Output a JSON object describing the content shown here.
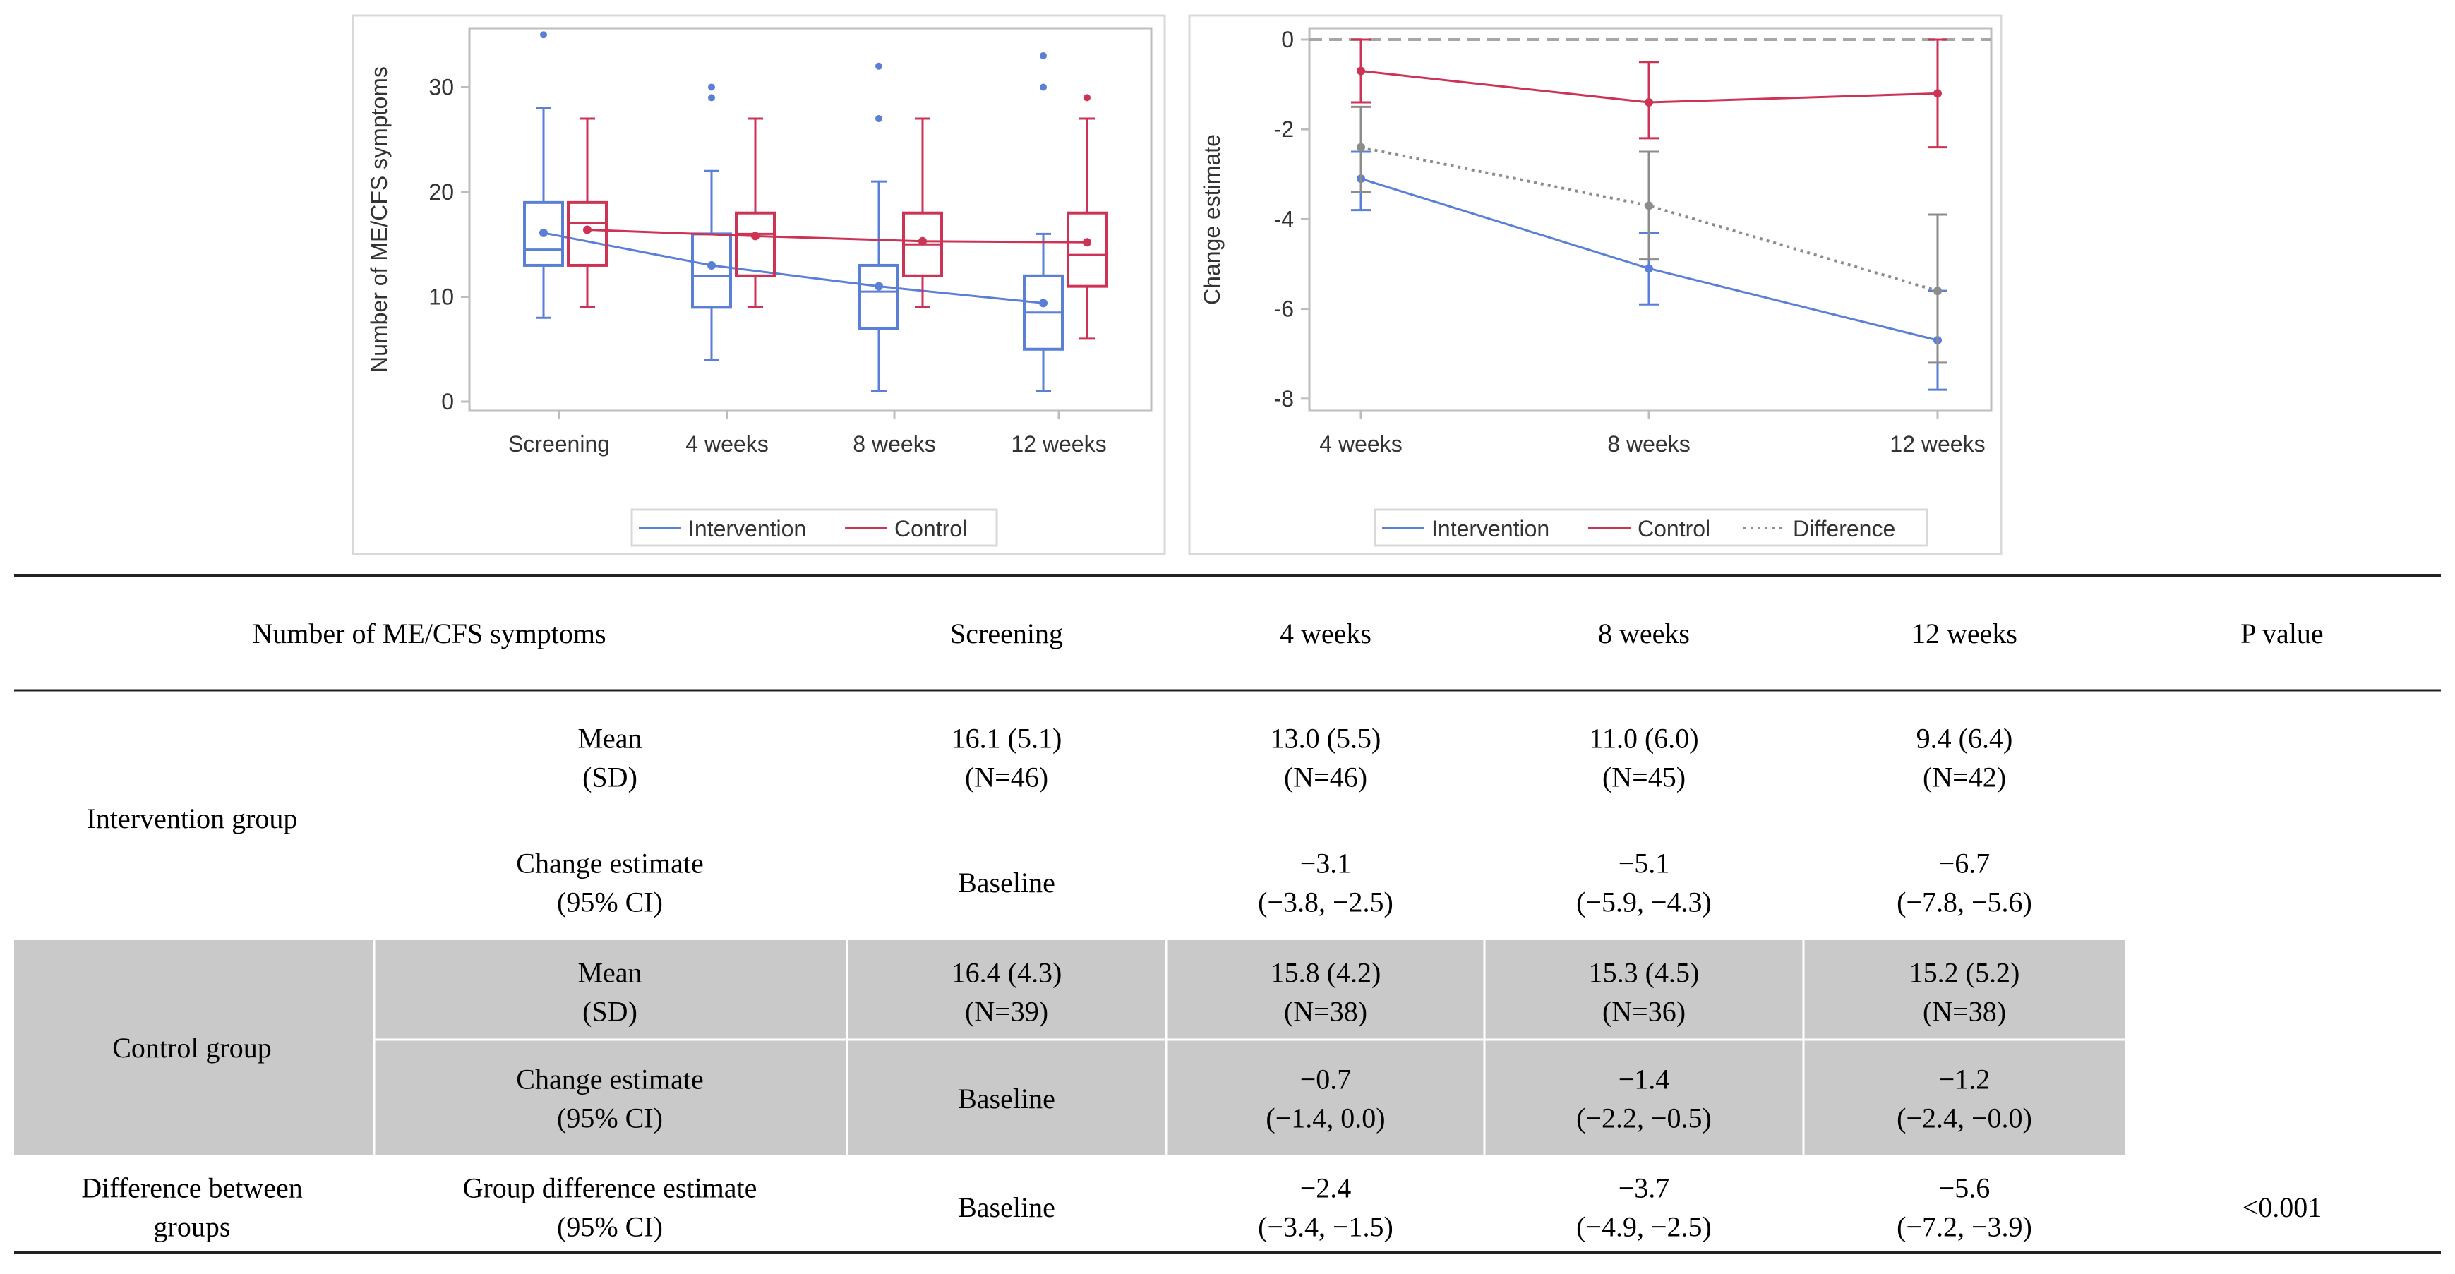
{
  "colors": {
    "intervention": "#5a7fd6",
    "control": "#cc3355",
    "difference": "#8c8c8c",
    "panel_border": "#d9d9d9",
    "axis": "#bdbdbd",
    "reference": "#a6a6a6",
    "shade": "#c9c9c9"
  },
  "chart_data": [
    {
      "type": "box",
      "ylabel": "Number of ME/CFS symptoms",
      "xlabel": "",
      "categories": [
        "Screening",
        "4 weeks",
        "8 weeks",
        "12 weeks"
      ],
      "yticks": [
        "0",
        "10",
        "20",
        "30"
      ],
      "ylim": [
        0,
        36
      ],
      "legend": [
        "Intervention",
        "Control"
      ],
      "legend_position": "bottom",
      "series": [
        {
          "name": "Intervention",
          "boxes": [
            {
              "min": 8,
              "q1": 13,
              "median": 14.5,
              "q3": 19,
              "max": 28,
              "mean": 16.1,
              "outliers": [
                35
              ]
            },
            {
              "min": 4,
              "q1": 9,
              "median": 12,
              "q3": 16,
              "max": 22,
              "mean": 13.0,
              "outliers": [
                29,
                30
              ]
            },
            {
              "min": 1,
              "q1": 7,
              "median": 10.5,
              "q3": 13,
              "max": 21,
              "mean": 11.0,
              "outliers": [
                27,
                32
              ]
            },
            {
              "min": 1,
              "q1": 5,
              "median": 8.5,
              "q3": 12,
              "max": 16,
              "mean": 9.4,
              "outliers": [
                30,
                33
              ]
            }
          ]
        },
        {
          "name": "Control",
          "boxes": [
            {
              "min": 9,
              "q1": 13,
              "median": 17,
              "q3": 19,
              "max": 27,
              "mean": 16.4,
              "outliers": []
            },
            {
              "min": 9,
              "q1": 12,
              "median": 16,
              "q3": 18,
              "max": 27,
              "mean": 15.8,
              "outliers": []
            },
            {
              "min": 9,
              "q1": 12,
              "median": 15,
              "q3": 18,
              "max": 27,
              "mean": 15.3,
              "outliers": []
            },
            {
              "min": 6,
              "q1": 11,
              "median": 14,
              "q3": 18,
              "max": 27,
              "mean": 15.2,
              "outliers": [
                29
              ]
            }
          ]
        }
      ]
    },
    {
      "type": "line",
      "ylabel": "Change estimate",
      "xlabel": "",
      "categories": [
        "4 weeks",
        "8 weeks",
        "12 weeks"
      ],
      "yticks": [
        "0",
        "-2",
        "-4",
        "-6",
        "-8"
      ],
      "ylim": [
        -8.2,
        0.3
      ],
      "reference_line": 0,
      "legend": [
        "Intervention",
        "Control",
        "Difference"
      ],
      "legend_position": "bottom",
      "series": [
        {
          "name": "Intervention",
          "values": [
            -3.1,
            -5.1,
            -6.7
          ],
          "lower": [
            -3.8,
            -5.9,
            -7.8
          ],
          "upper": [
            -2.5,
            -4.3,
            -5.6
          ]
        },
        {
          "name": "Control",
          "values": [
            -0.7,
            -1.4,
            -1.2
          ],
          "lower": [
            -1.4,
            -2.2,
            -2.4
          ],
          "upper": [
            0.0,
            -0.5,
            0.0
          ]
        },
        {
          "name": "Difference",
          "values": [
            -2.4,
            -3.7,
            -5.6
          ],
          "lower": [
            -3.4,
            -4.9,
            -7.2
          ],
          "upper": [
            -1.5,
            -2.5,
            -3.9
          ]
        }
      ]
    }
  ],
  "table": {
    "header": {
      "label": "Number of ME/CFS symptoms",
      "cols": [
        "Screening",
        "4 weeks",
        "8 weeks",
        "12 weeks",
        "P value"
      ]
    },
    "intervention": {
      "group": "Intervention group",
      "mean_label": [
        "Mean",
        "(SD)"
      ],
      "mean": [
        [
          "16.1 (5.1)",
          "(N=46)"
        ],
        [
          "13.0 (5.5)",
          "(N=46)"
        ],
        [
          "11.0 (6.0)",
          "(N=45)"
        ],
        [
          "9.4 (6.4)",
          "(N=42)"
        ]
      ],
      "change_label": [
        "Change estimate",
        "(95% CI)"
      ],
      "change": [
        [
          "Baseline"
        ],
        [
          "−3.1",
          "(−3.8, −2.5)"
        ],
        [
          "−5.1",
          "(−5.9, −4.3)"
        ],
        [
          "−6.7",
          "(−7.8, −5.6)"
        ]
      ]
    },
    "control": {
      "group": "Control group",
      "mean_label": [
        "Mean",
        "(SD)"
      ],
      "mean": [
        [
          "16.4 (4.3)",
          "(N=39)"
        ],
        [
          "15.8 (4.2)",
          "(N=38)"
        ],
        [
          "15.3 (4.5)",
          "(N=36)"
        ],
        [
          "15.2 (5.2)",
          "(N=38)"
        ]
      ],
      "change_label": [
        "Change estimate",
        "(95% CI)"
      ],
      "change": [
        [
          "Baseline"
        ],
        [
          "−0.7",
          "(−1.4, 0.0)"
        ],
        [
          "−1.4",
          "(−2.2, −0.5)"
        ],
        [
          "−1.2",
          "(−2.4, −0.0)"
        ]
      ]
    },
    "difference": {
      "group": [
        "Difference between",
        "groups"
      ],
      "label": [
        "Group difference estimate",
        "(95% CI)"
      ],
      "values": [
        [
          "Baseline"
        ],
        [
          "−2.4",
          "(−3.4, −1.5)"
        ],
        [
          "−3.7",
          "(−4.9, −2.5)"
        ],
        [
          "−5.6",
          "(−7.2, −3.9)"
        ]
      ],
      "p_value": "<0.001"
    }
  }
}
